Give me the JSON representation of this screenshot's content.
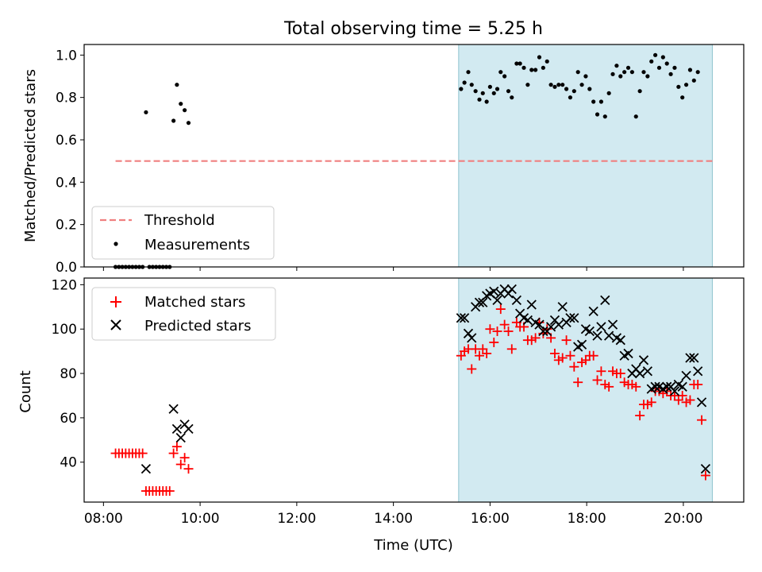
{
  "figure": {
    "title": "Total observing time = 5.25 h",
    "xlabel": "Time (UTC)",
    "x_ticks": [
      {
        "hour": 8,
        "label": "08:00"
      },
      {
        "hour": 10,
        "label": "10:00"
      },
      {
        "hour": 12,
        "label": "12:00"
      },
      {
        "hour": 14,
        "label": "14:00"
      },
      {
        "hour": 16,
        "label": "16:00"
      },
      {
        "hour": 18,
        "label": "18:00"
      },
      {
        "hour": 20,
        "label": "20:00"
      }
    ],
    "xlim": [
      7.6,
      21.25
    ],
    "shaded_interval": {
      "start": 15.35,
      "end": 20.6,
      "color": "#add8e6"
    }
  },
  "chart_data": [
    {
      "type": "scatter",
      "ylabel": "Matched/Predicted stars",
      "ylim": [
        0,
        1.05
      ],
      "y_ticks": [
        "0.0",
        "0.2",
        "0.4",
        "0.6",
        "0.8",
        "1.0"
      ],
      "legend_position": "lower-left",
      "threshold": {
        "name": "Threshold",
        "y": 0.5,
        "x_range": [
          8.25,
          20.6
        ],
        "color": "#f08080"
      },
      "series": [
        {
          "name": "Measurements",
          "color": "#000000",
          "marker": "dot",
          "points": [
            [
              8.25,
              0
            ],
            [
              8.32,
              0
            ],
            [
              8.39,
              0
            ],
            [
              8.46,
              0
            ],
            [
              8.53,
              0
            ],
            [
              8.6,
              0
            ],
            [
              8.67,
              0
            ],
            [
              8.74,
              0
            ],
            [
              8.81,
              0
            ],
            [
              8.88,
              0.73
            ],
            [
              8.95,
              0
            ],
            [
              9.02,
              0
            ],
            [
              9.09,
              0
            ],
            [
              9.16,
              0
            ],
            [
              9.23,
              0
            ],
            [
              9.3,
              0
            ],
            [
              9.37,
              0
            ],
            [
              9.45,
              0.69
            ],
            [
              9.52,
              0.86
            ],
            [
              9.6,
              0.77
            ],
            [
              9.68,
              0.74
            ],
            [
              9.76,
              0.68
            ],
            [
              15.4,
              0.84
            ],
            [
              15.47,
              0.87
            ],
            [
              15.55,
              0.92
            ],
            [
              15.62,
              0.86
            ],
            [
              15.7,
              0.83
            ],
            [
              15.78,
              0.79
            ],
            [
              15.85,
              0.82
            ],
            [
              15.93,
              0.78
            ],
            [
              16.0,
              0.85
            ],
            [
              16.08,
              0.82
            ],
            [
              16.15,
              0.84
            ],
            [
              16.22,
              0.92
            ],
            [
              16.3,
              0.9
            ],
            [
              16.38,
              0.83
            ],
            [
              16.45,
              0.8
            ],
            [
              16.55,
              0.96
            ],
            [
              16.62,
              0.96
            ],
            [
              16.7,
              0.94
            ],
            [
              16.78,
              0.86
            ],
            [
              16.86,
              0.93
            ],
            [
              16.94,
              0.93
            ],
            [
              17.02,
              0.99
            ],
            [
              17.1,
              0.94
            ],
            [
              17.18,
              0.97
            ],
            [
              17.26,
              0.86
            ],
            [
              17.34,
              0.85
            ],
            [
              17.42,
              0.86
            ],
            [
              17.5,
              0.86
            ],
            [
              17.58,
              0.84
            ],
            [
              17.66,
              0.8
            ],
            [
              17.74,
              0.83
            ],
            [
              17.82,
              0.92
            ],
            [
              17.9,
              0.86
            ],
            [
              17.98,
              0.9
            ],
            [
              18.06,
              0.84
            ],
            [
              18.14,
              0.78
            ],
            [
              18.22,
              0.72
            ],
            [
              18.3,
              0.78
            ],
            [
              18.38,
              0.71
            ],
            [
              18.46,
              0.82
            ],
            [
              18.54,
              0.91
            ],
            [
              18.62,
              0.95
            ],
            [
              18.7,
              0.9
            ],
            [
              18.78,
              0.92
            ],
            [
              18.86,
              0.94
            ],
            [
              18.94,
              0.92
            ],
            [
              19.02,
              0.71
            ],
            [
              19.1,
              0.83
            ],
            [
              19.18,
              0.92
            ],
            [
              19.26,
              0.9
            ],
            [
              19.34,
              0.97
            ],
            [
              19.42,
              1.0
            ],
            [
              19.5,
              0.94
            ],
            [
              19.58,
              0.99
            ],
            [
              19.66,
              0.96
            ],
            [
              19.74,
              0.91
            ],
            [
              19.82,
              0.94
            ],
            [
              19.9,
              0.85
            ],
            [
              19.98,
              0.8
            ],
            [
              20.06,
              0.86
            ],
            [
              20.14,
              0.93
            ],
            [
              20.22,
              0.88
            ],
            [
              20.3,
              0.92
            ]
          ]
        }
      ]
    },
    {
      "type": "scatter",
      "ylabel": "Count",
      "ylim": [
        22,
        123
      ],
      "y_ticks": [
        "40",
        "60",
        "80",
        "100",
        "120"
      ],
      "legend_position": "upper-left",
      "series": [
        {
          "name": "Matched stars",
          "color": "#ff0000",
          "marker": "plus",
          "points": [
            [
              8.25,
              44
            ],
            [
              8.32,
              44
            ],
            [
              8.39,
              44
            ],
            [
              8.46,
              44
            ],
            [
              8.53,
              44
            ],
            [
              8.6,
              44
            ],
            [
              8.67,
              44
            ],
            [
              8.74,
              44
            ],
            [
              8.81,
              44
            ],
            [
              8.88,
              27
            ],
            [
              8.95,
              27
            ],
            [
              9.02,
              27
            ],
            [
              9.09,
              27
            ],
            [
              9.16,
              27
            ],
            [
              9.23,
              27
            ],
            [
              9.3,
              27
            ],
            [
              9.37,
              27
            ],
            [
              9.45,
              44
            ],
            [
              9.52,
              47
            ],
            [
              9.6,
              39
            ],
            [
              9.68,
              42
            ],
            [
              9.76,
              37
            ],
            [
              15.4,
              88
            ],
            [
              15.47,
              90
            ],
            [
              15.55,
              91
            ],
            [
              15.62,
              82
            ],
            [
              15.7,
              91
            ],
            [
              15.78,
              88
            ],
            [
              15.85,
              91
            ],
            [
              15.93,
              89
            ],
            [
              16.0,
              100
            ],
            [
              16.08,
              94
            ],
            [
              16.15,
              99
            ],
            [
              16.22,
              109
            ],
            [
              16.3,
              102
            ],
            [
              16.38,
              99
            ],
            [
              16.45,
              91
            ],
            [
              16.55,
              103
            ],
            [
              16.62,
              101
            ],
            [
              16.7,
              101
            ],
            [
              16.78,
              95
            ],
            [
              16.86,
              95
            ],
            [
              16.94,
              96
            ],
            [
              17.02,
              103
            ],
            [
              17.1,
              98
            ],
            [
              17.18,
              100
            ],
            [
              17.26,
              96
            ],
            [
              17.34,
              89
            ],
            [
              17.42,
              86
            ],
            [
              17.5,
              87
            ],
            [
              17.58,
              95
            ],
            [
              17.66,
              88
            ],
            [
              17.74,
              83
            ],
            [
              17.82,
              76
            ],
            [
              17.9,
              85
            ],
            [
              17.98,
              86
            ],
            [
              18.06,
              88
            ],
            [
              18.14,
              88
            ],
            [
              18.22,
              77
            ],
            [
              18.3,
              81
            ],
            [
              18.38,
              75
            ],
            [
              18.46,
              74
            ],
            [
              18.54,
              81
            ],
            [
              18.62,
              80
            ],
            [
              18.7,
              80
            ],
            [
              18.78,
              76
            ],
            [
              18.86,
              75
            ],
            [
              18.94,
              75
            ],
            [
              19.02,
              74
            ],
            [
              19.1,
              61
            ],
            [
              19.18,
              66
            ],
            [
              19.26,
              66
            ],
            [
              19.34,
              67
            ],
            [
              19.42,
              72
            ],
            [
              19.5,
              72
            ],
            [
              19.58,
              71
            ],
            [
              19.66,
              72
            ],
            [
              19.74,
              70
            ],
            [
              19.82,
              70
            ],
            [
              19.9,
              68
            ],
            [
              19.98,
              70
            ],
            [
              20.06,
              67
            ],
            [
              20.14,
              68
            ],
            [
              20.22,
              75
            ],
            [
              20.3,
              75
            ],
            [
              20.38,
              59
            ],
            [
              20.46,
              34
            ]
          ]
        },
        {
          "name": "Predicted stars",
          "color": "#000000",
          "marker": "x",
          "points": [
            [
              8.88,
              37
            ],
            [
              9.45,
              64
            ],
            [
              9.52,
              55
            ],
            [
              9.6,
              51
            ],
            [
              9.68,
              57
            ],
            [
              9.76,
              55
            ],
            [
              15.4,
              105
            ],
            [
              15.47,
              105
            ],
            [
              15.55,
              98
            ],
            [
              15.62,
              96
            ],
            [
              15.7,
              110
            ],
            [
              15.78,
              112
            ],
            [
              15.85,
              112
            ],
            [
              15.93,
              115
            ],
            [
              16.0,
              116
            ],
            [
              16.08,
              117
            ],
            [
              16.15,
              113
            ],
            [
              16.22,
              116
            ],
            [
              16.3,
              118
            ],
            [
              16.38,
              116
            ],
            [
              16.45,
              118
            ],
            [
              16.55,
              113
            ],
            [
              16.62,
              107
            ],
            [
              16.7,
              105
            ],
            [
              16.78,
              104
            ],
            [
              16.86,
              111
            ],
            [
              16.94,
              103
            ],
            [
              17.02,
              102
            ],
            [
              17.1,
              99
            ],
            [
              17.18,
              99
            ],
            [
              17.26,
              101
            ],
            [
              17.34,
              104
            ],
            [
              17.42,
              102
            ],
            [
              17.5,
              110
            ],
            [
              17.58,
              103
            ],
            [
              17.66,
              105
            ],
            [
              17.74,
              105
            ],
            [
              17.82,
              92
            ],
            [
              17.9,
              93
            ],
            [
              17.98,
              100
            ],
            [
              18.06,
              99
            ],
            [
              18.14,
              108
            ],
            [
              18.22,
              97
            ],
            [
              18.3,
              101
            ],
            [
              18.38,
              113
            ],
            [
              18.46,
              97
            ],
            [
              18.54,
              102
            ],
            [
              18.62,
              96
            ],
            [
              18.7,
              95
            ],
            [
              18.78,
              88
            ],
            [
              18.86,
              89
            ],
            [
              18.94,
              80
            ],
            [
              19.02,
              82
            ],
            [
              19.1,
              80
            ],
            [
              19.18,
              86
            ],
            [
              19.26,
              81
            ],
            [
              19.34,
              73
            ],
            [
              19.42,
              74
            ],
            [
              19.5,
              74
            ],
            [
              19.58,
              73
            ],
            [
              19.66,
              74
            ],
            [
              19.74,
              74
            ],
            [
              19.82,
              72
            ],
            [
              19.9,
              75
            ],
            [
              19.98,
              74
            ],
            [
              20.06,
              79
            ],
            [
              20.14,
              87
            ],
            [
              20.22,
              87
            ],
            [
              20.3,
              81
            ],
            [
              20.38,
              67
            ],
            [
              20.46,
              37
            ]
          ]
        }
      ]
    }
  ]
}
